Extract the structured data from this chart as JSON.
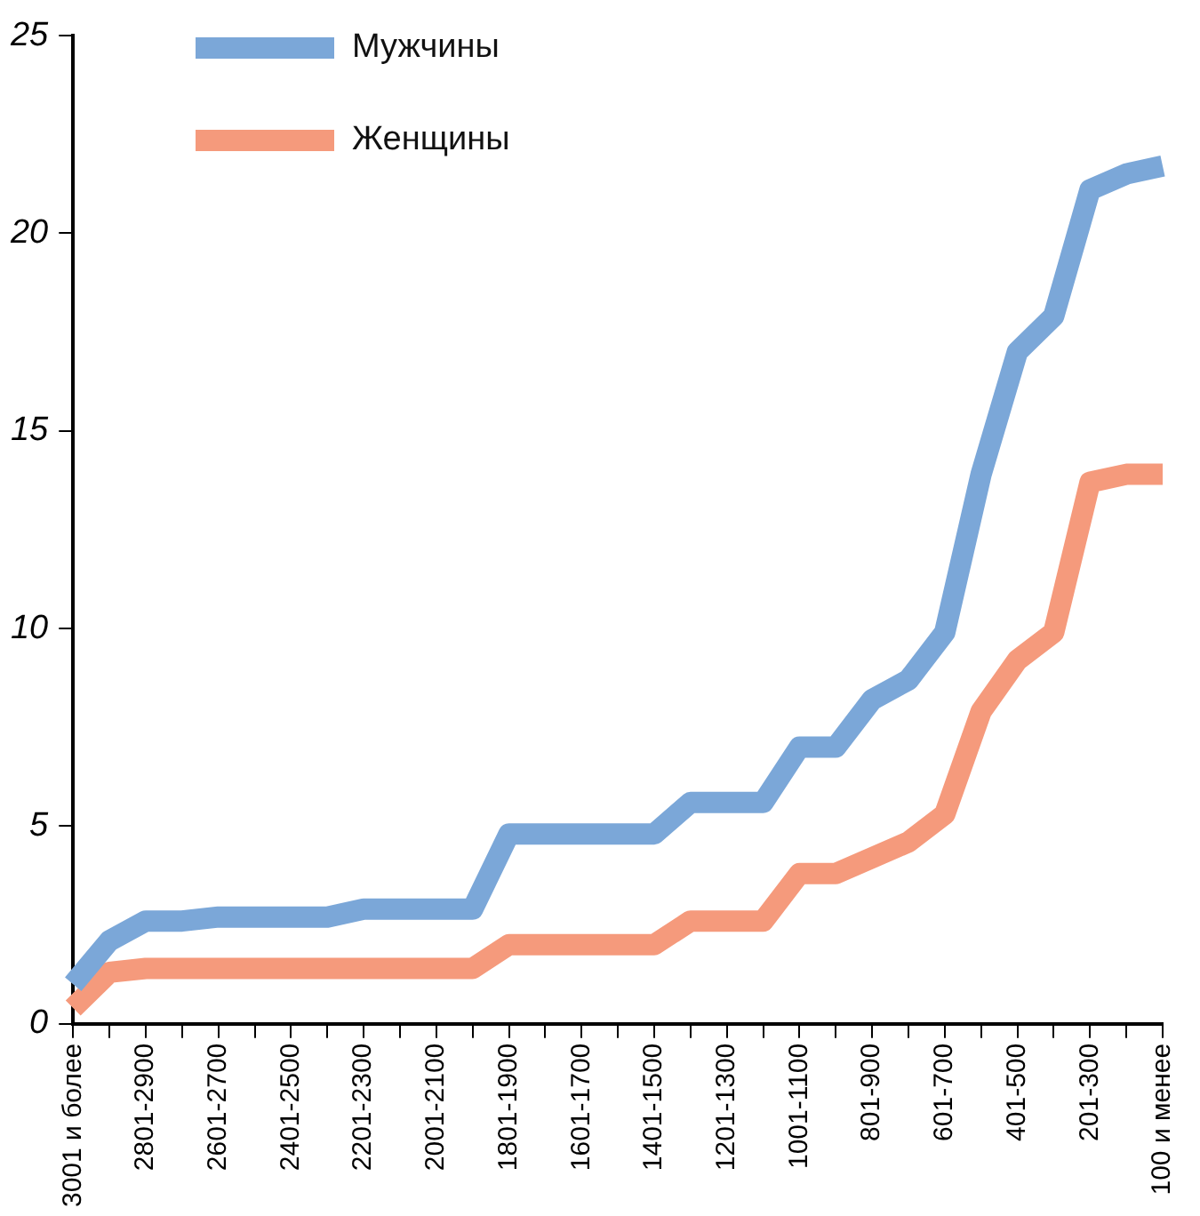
{
  "chart_data": {
    "type": "line",
    "categories": [
      "3001 и более",
      null,
      "2801-2900",
      null,
      "2601-2700",
      null,
      "2401-2500",
      null,
      "2201-2300",
      null,
      "2001-2100",
      null,
      "1801-1900",
      null,
      "1601-1700",
      null,
      "1401-1500",
      null,
      "1201-1300",
      null,
      "1001-1100",
      null,
      "801-900",
      null,
      "601-700",
      null,
      "401-500",
      null,
      "201-300",
      null,
      "100 и менее"
    ],
    "series": [
      {
        "name": "Мужчины",
        "color": "#7ba7d8",
        "values": [
          1.0,
          2.1,
          2.6,
          2.6,
          2.7,
          2.7,
          2.7,
          2.7,
          2.9,
          2.9,
          2.9,
          2.9,
          4.8,
          4.8,
          4.8,
          4.8,
          4.8,
          5.6,
          5.6,
          5.6,
          7.0,
          7.0,
          8.2,
          8.7,
          9.9,
          13.9,
          17.0,
          17.9,
          21.1,
          21.5,
          21.7
        ]
      },
      {
        "name": "Женщины",
        "color": "#f59a7c",
        "values": [
          0.4,
          1.3,
          1.4,
          1.4,
          1.4,
          1.4,
          1.4,
          1.4,
          1.4,
          1.4,
          1.4,
          1.4,
          2.0,
          2.0,
          2.0,
          2.0,
          2.0,
          2.6,
          2.6,
          2.6,
          3.8,
          3.8,
          4.2,
          4.6,
          5.3,
          7.9,
          9.2,
          9.9,
          13.7,
          13.9,
          13.9
        ]
      }
    ],
    "ylim": [
      0,
      25
    ],
    "yticks": [
      0,
      5,
      10,
      15,
      20,
      25
    ],
    "grid": false,
    "legend": "top left",
    "marker": "none",
    "line_style": "solid"
  }
}
